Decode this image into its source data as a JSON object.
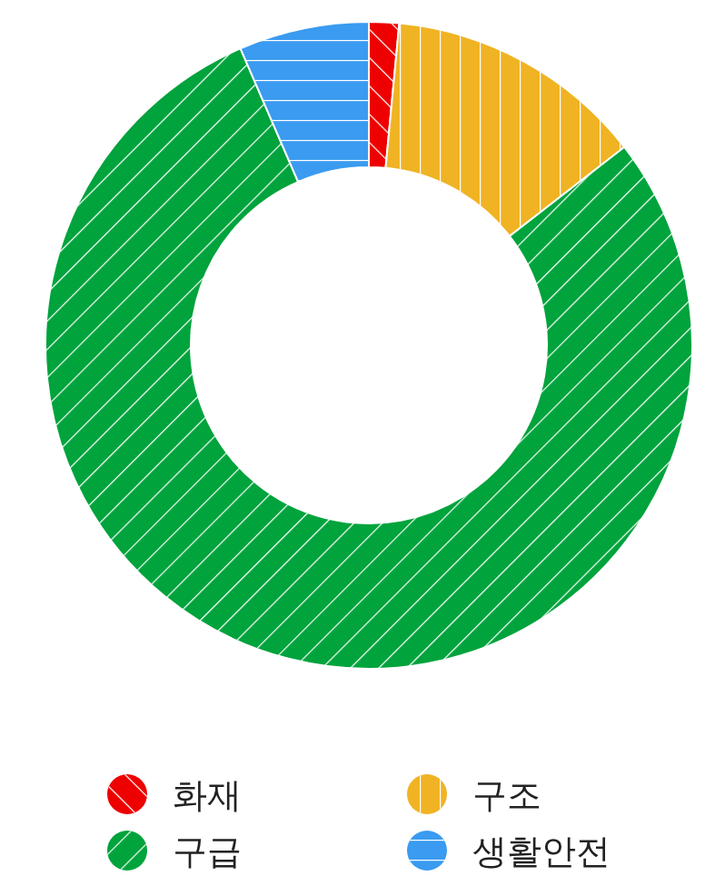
{
  "chart_data": {
    "type": "donut",
    "categories": [
      "화재",
      "구조",
      "구급",
      "생활안전"
    ],
    "values": [
      1.5,
      13,
      79,
      6.5
    ],
    "colors": [
      "#ee0000",
      "#f0b323",
      "#00a33c",
      "#3a9bf0"
    ],
    "legend": "bottom"
  }
}
